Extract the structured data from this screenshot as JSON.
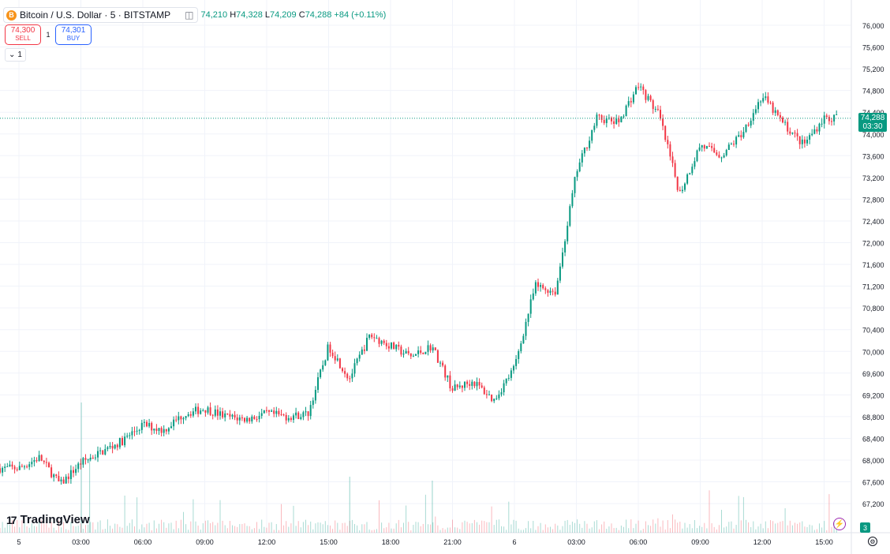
{
  "legend": {
    "icon_letter": "B",
    "title": "Bitcoin / U.S. Dollar · 5 · BITSTAMP",
    "open_value": "74,210",
    "high_key": "H",
    "high_value": "74,328",
    "low_key": "L",
    "low_value": "74,209",
    "close_key": "C",
    "close_value": "74,288",
    "change": "+84 (+0.11%)",
    "eye_icon": "eye-icon"
  },
  "trade": {
    "sell_price": "74,300",
    "sell_label": "SELL",
    "spread": "1",
    "buy_price": "74,301",
    "buy_label": "BUY"
  },
  "collapse": {
    "label": "1"
  },
  "logo": {
    "mark": "17",
    "text": "TradingView"
  },
  "last_price": {
    "price": "74,288",
    "countdown": "03:30"
  },
  "events_badge": "3",
  "colors": {
    "up": "#089981",
    "down": "#f23645",
    "grid": "#f0f3fa",
    "price_line": "#089981"
  },
  "chart_data": {
    "type": "candlestick",
    "symbol": "Bitcoin / U.S. Dollar",
    "interval": "5",
    "exchange": "BITSTAMP",
    "y_ticks": [
      67200,
      67600,
      68000,
      68400,
      68800,
      69200,
      69600,
      70000,
      70400,
      70800,
      71200,
      71600,
      72000,
      72400,
      72800,
      73200,
      73600,
      74000,
      74400,
      74800,
      75200,
      75600,
      76000
    ],
    "ylim": [
      66800,
      76200
    ],
    "x_ticks": [
      "5",
      "03:00",
      "06:00",
      "09:00",
      "12:00",
      "15:00",
      "18:00",
      "21:00",
      "6",
      "03:00",
      "06:00",
      "09:00",
      "12:00",
      "15:00"
    ],
    "last_price": 74288,
    "grid": true,
    "price_path_hourly": [
      {
        "t": "00:00",
        "price": 67850
      },
      {
        "t": "01:00",
        "price": 68050
      },
      {
        "t": "02:00",
        "price": 67550
      },
      {
        "t": "03:00",
        "price": 67950
      },
      {
        "t": "04:00",
        "price": 68150
      },
      {
        "t": "05:00",
        "price": 68350
      },
      {
        "t": "06:00",
        "price": 68650
      },
      {
        "t": "07:00",
        "price": 68550
      },
      {
        "t": "08:00",
        "price": 68850
      },
      {
        "t": "09:00",
        "price": 68950
      },
      {
        "t": "10:00",
        "price": 68800
      },
      {
        "t": "11:00",
        "price": 68750
      },
      {
        "t": "12:00",
        "price": 68850
      },
      {
        "t": "13:00",
        "price": 68800
      },
      {
        "t": "14:00",
        "price": 68850
      },
      {
        "t": "15:00",
        "price": 70100
      },
      {
        "t": "16:00",
        "price": 69500
      },
      {
        "t": "17:00",
        "price": 70300
      },
      {
        "t": "18:00",
        "price": 70100
      },
      {
        "t": "19:00",
        "price": 69900
      },
      {
        "t": "20:00",
        "price": 70100
      },
      {
        "t": "21:00",
        "price": 69300
      },
      {
        "t": "22:00",
        "price": 69450
      },
      {
        "t": "23:00",
        "price": 69100
      },
      {
        "t": "00:00",
        "price": 69700
      },
      {
        "t": "01:00",
        "price": 71200
      },
      {
        "t": "02:00",
        "price": 71100
      },
      {
        "t": "03:00",
        "price": 73300
      },
      {
        "t": "04:00",
        "price": 74300
      },
      {
        "t": "05:00",
        "price": 74200
      },
      {
        "t": "06:00",
        "price": 74900
      },
      {
        "t": "07:00",
        "price": 74350
      },
      {
        "t": "08:00",
        "price": 72900
      },
      {
        "t": "09:00",
        "price": 73800
      },
      {
        "t": "10:00",
        "price": 73600
      },
      {
        "t": "11:00",
        "price": 74000
      },
      {
        "t": "12:00",
        "price": 74700
      },
      {
        "t": "13:00",
        "price": 74200
      },
      {
        "t": "14:00",
        "price": 73800
      },
      {
        "t": "15:00",
        "price": 74300
      },
      {
        "t": "15:30",
        "price": 74288
      }
    ],
    "volume_peaks": [
      {
        "t": "03:00",
        "relative": 1.0
      },
      {
        "t": "03:00",
        "relative": 0.57
      },
      {
        "t": "16:00",
        "relative": 0.43
      },
      {
        "t": "20:00",
        "relative": 0.4
      }
    ]
  }
}
